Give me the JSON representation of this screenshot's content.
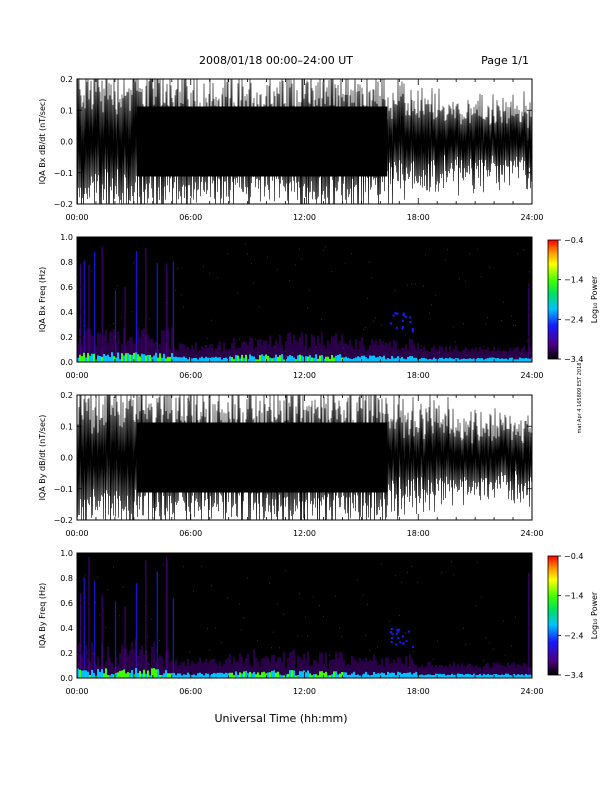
{
  "header": {
    "title": "2008/01/18  00:00–24:00 UT",
    "page": "Page 1/1"
  },
  "side_note": "mat Apr 4 165809 EST 2018",
  "xlabel": "Universal Time (hh:mm)",
  "x_ticks": [
    "00:00",
    "06:00",
    "12:00",
    "18:00",
    "24:00"
  ],
  "panels": [
    {
      "type": "line",
      "ylabel": "IQA Bx dB/dt (nT/sec)",
      "ylim": [
        -0.2,
        0.2
      ],
      "y_ticks": [
        "−0.2",
        "−0.1",
        "0.0",
        "0.1",
        "0.2"
      ],
      "amplitude_by_hour": [
        0.21,
        0.21,
        0.21,
        0.21,
        0.21,
        0.21,
        0.18,
        0.17,
        0.17,
        0.18,
        0.19,
        0.2,
        0.21,
        0.21,
        0.2,
        0.19,
        0.17,
        0.15,
        0.14,
        0.13,
        0.13,
        0.12,
        0.12,
        0.12
      ]
    },
    {
      "type": "heatmap",
      "ylabel": "IQA Bx Freq (Hz)",
      "ylim": [
        0.0,
        1.0
      ],
      "y_ticks": [
        "0.0",
        "0.2",
        "0.4",
        "0.6",
        "0.8",
        "1.0"
      ],
      "colorbar": {
        "label": "Log₁₀ Power",
        "ticks": [
          "−0.4",
          "−1.4",
          "−2.4",
          "−3.4"
        ],
        "range": [
          -3.4,
          -0.4
        ]
      }
    },
    {
      "type": "line",
      "ylabel": "IQA By dB/dt (nT/sec)",
      "ylim": [
        -0.2,
        0.2
      ],
      "y_ticks": [
        "−0.2",
        "−0.1",
        "0.0",
        "0.1",
        "0.2"
      ],
      "amplitude_by_hour": [
        0.21,
        0.21,
        0.21,
        0.21,
        0.21,
        0.21,
        0.19,
        0.18,
        0.18,
        0.19,
        0.2,
        0.21,
        0.21,
        0.21,
        0.21,
        0.2,
        0.18,
        0.16,
        0.15,
        0.14,
        0.13,
        0.13,
        0.12,
        0.12
      ]
    },
    {
      "type": "heatmap",
      "ylabel": "IQA By Freq (Hz)",
      "ylim": [
        0.0,
        1.0
      ],
      "y_ticks": [
        "0.0",
        "0.2",
        "0.4",
        "0.6",
        "0.8",
        "1.0"
      ],
      "colorbar": {
        "label": "Log₁₀ Power",
        "ticks": [
          "−0.4",
          "−1.4",
          "−2.4",
          "−3.4"
        ],
        "range": [
          -3.4,
          -0.4
        ]
      }
    }
  ],
  "chart_data": [
    {
      "type": "line",
      "title": "2008/01/18  00:00–24:00 UT",
      "ylabel": "IQA Bx dB/dt (nT/sec)",
      "xlabel": "",
      "xlim": [
        "00:00",
        "24:00"
      ],
      "ylim": [
        -0.2,
        0.2
      ],
      "note": "dense oscillating signal, envelope amplitude per hour (nT/sec)",
      "series": [
        {
          "values": [
            0.21,
            0.21,
            0.21,
            0.21,
            0.21,
            0.21,
            0.18,
            0.17,
            0.17,
            0.18,
            0.19,
            0.2,
            0.21,
            0.21,
            0.2,
            0.19,
            0.17,
            0.15,
            0.14,
            0.13,
            0.13,
            0.12,
            0.12,
            0.12
          ]
        }
      ]
    },
    {
      "type": "heatmap",
      "ylabel": "IQA Bx Freq (Hz)",
      "xlim": [
        "00:00",
        "24:00"
      ],
      "ylim": [
        0.0,
        1.0
      ],
      "colorbar_label": "Log₁₀ Power",
      "colorbar_range": [
        -3.4,
        -0.4
      ]
    },
    {
      "type": "line",
      "ylabel": "IQA By dB/dt (nT/sec)",
      "xlim": [
        "00:00",
        "24:00"
      ],
      "ylim": [
        -0.2,
        0.2
      ],
      "series": [
        {
          "values": [
            0.21,
            0.21,
            0.21,
            0.21,
            0.21,
            0.21,
            0.19,
            0.18,
            0.18,
            0.19,
            0.2,
            0.21,
            0.21,
            0.21,
            0.21,
            0.2,
            0.18,
            0.16,
            0.15,
            0.14,
            0.13,
            0.13,
            0.12,
            0.12
          ]
        }
      ]
    },
    {
      "type": "heatmap",
      "ylabel": "IQA By Freq (Hz)",
      "xlabel": "Universal Time (hh:mm)",
      "xlim": [
        "00:00",
        "24:00"
      ],
      "ylim": [
        0.0,
        1.0
      ],
      "colorbar_label": "Log₁₀ Power",
      "colorbar_range": [
        -3.4,
        -0.4
      ]
    }
  ]
}
